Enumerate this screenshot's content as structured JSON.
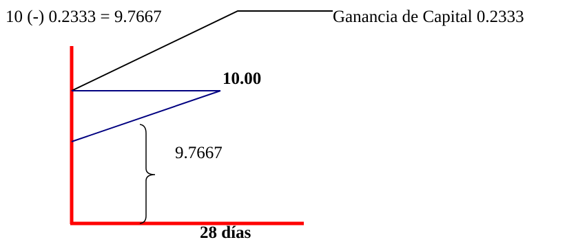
{
  "labels": {
    "equation": "10 (-) 0.2333 = 9.7667",
    "gain": "Ganancia de Capital 0.2333",
    "price": "10.00",
    "discount": "9.7667",
    "days": "28 días"
  },
  "colors": {
    "axes": "#ff0000",
    "price_lines": "#000080",
    "leader_line": "#000000",
    "brace": "#000000"
  }
}
